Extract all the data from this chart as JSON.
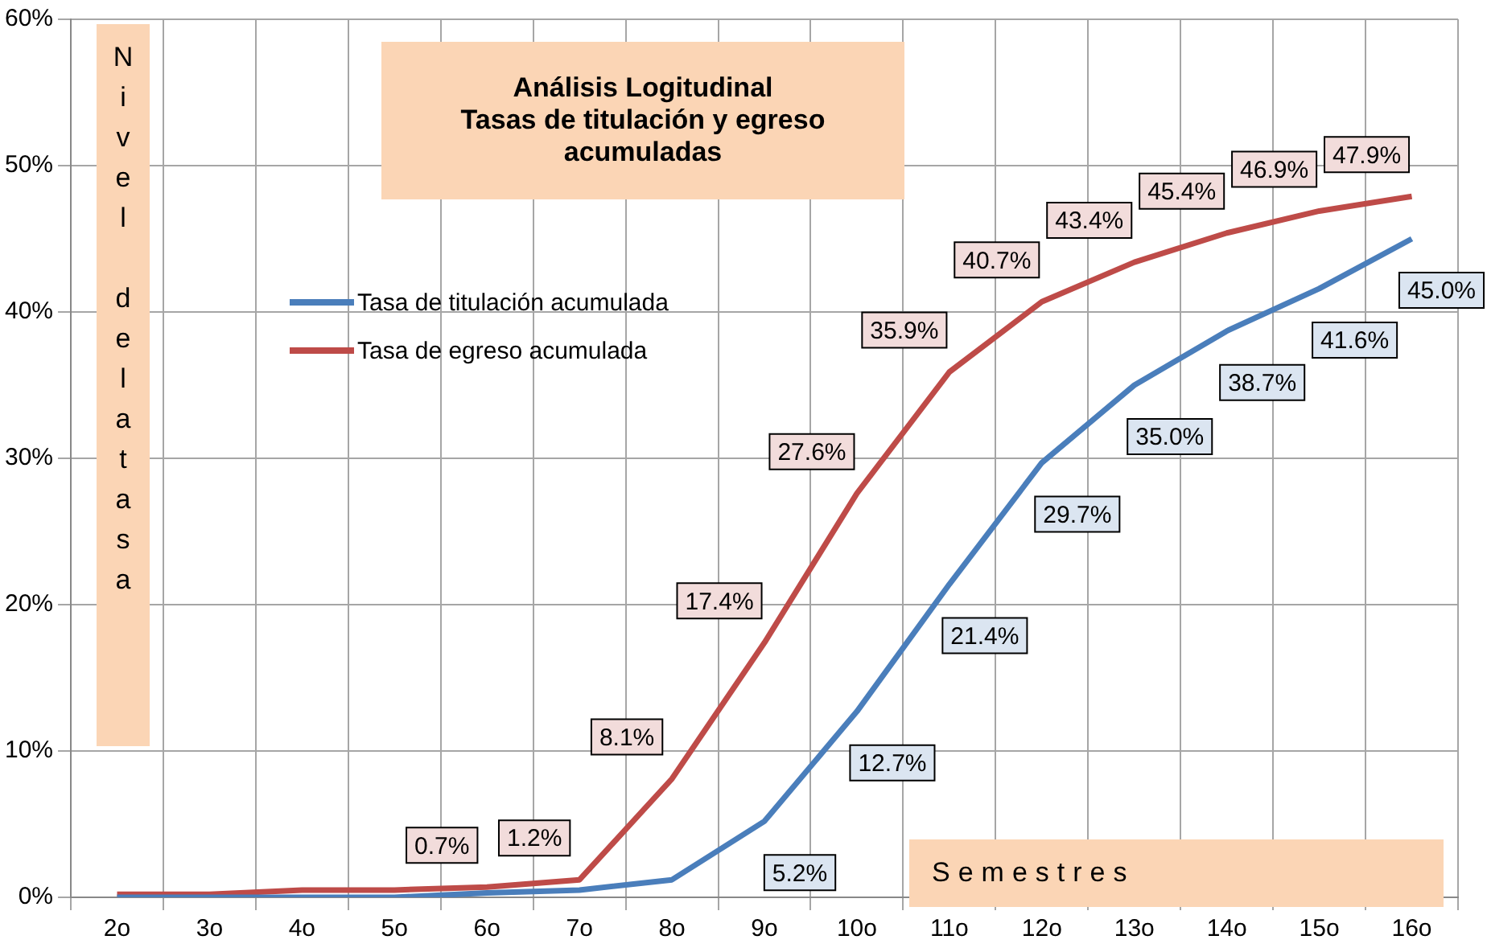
{
  "chart_data": {
    "type": "line",
    "title": "Análisis Logitudinal",
    "subtitle": "Tasas de titulación y egreso acumuladas",
    "xlabel": "Semestres",
    "ylabel": "Nivel delatasa",
    "categories": [
      "2o",
      "3o",
      "4o",
      "5o",
      "6o",
      "7o",
      "8o",
      "9o",
      "10o",
      "11o",
      "12o",
      "13o",
      "14o",
      "15o",
      "16o"
    ],
    "series": [
      {
        "name": "Tasa de titulación acumulada",
        "color": "#4a7ebb",
        "values": [
          0,
          0,
          0,
          0,
          0.3,
          0.5,
          1.2,
          5.2,
          12.7,
          21.4,
          29.7,
          35.0,
          38.7,
          41.6,
          45.0
        ],
        "value_labels": [
          null,
          null,
          null,
          null,
          null,
          null,
          null,
          "5.2%",
          "12.7%",
          "21.4%",
          "29.7%",
          "35.0%",
          "38.7%",
          "41.6%",
          "45.0%"
        ]
      },
      {
        "name": "Tasa de egreso acumulada",
        "color": "#be4b48",
        "values": [
          0.2,
          0.2,
          0.5,
          0.5,
          0.7,
          1.2,
          8.1,
          17.4,
          27.6,
          35.9,
          40.7,
          43.4,
          45.4,
          46.9,
          47.9
        ],
        "value_labels": [
          null,
          null,
          null,
          null,
          "0.7%",
          "1.2%",
          "8.1%",
          "17.4%",
          "27.6%",
          "35.9%",
          "40.7%",
          "43.4%",
          "45.4%",
          "46.9%",
          "47.9%"
        ]
      }
    ],
    "ylim": [
      0,
      60
    ],
    "yticks": [
      {
        "value": 0,
        "label": "0%"
      },
      {
        "value": 10,
        "label": "10%"
      },
      {
        "value": 20,
        "label": "20%"
      },
      {
        "value": 30,
        "label": "30%"
      },
      {
        "value": 40,
        "label": "40%"
      },
      {
        "value": 50,
        "label": "50%"
      },
      {
        "value": 60,
        "label": "60%"
      }
    ],
    "grid": true,
    "legend": "left",
    "marker": "none",
    "line_style": "solid"
  }
}
